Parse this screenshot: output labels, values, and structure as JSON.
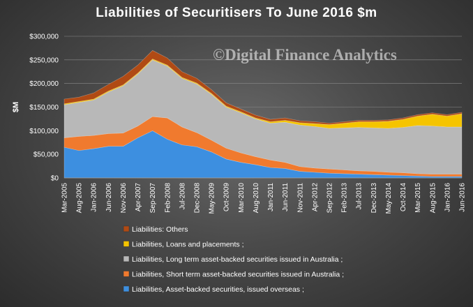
{
  "watermark": "©Digital Finance Analytics",
  "colors": {
    "overseas": "#3d8fe0",
    "short_term": "#f07a2e",
    "long_term": "#b8b8b8",
    "loans": "#f5c400",
    "others": "#b04a14"
  },
  "chart_data": {
    "type": "area",
    "stacked": true,
    "title": "Liabilities of Securitisers To June 2016 $m",
    "ylabel": "$M",
    "xlabel": "",
    "ylim": [
      0,
      300000
    ],
    "yticks": [
      "$0",
      "$50,000",
      "$100,000",
      "$150,000",
      "$200,000",
      "$250,000",
      "$300,000"
    ],
    "ytick_values": [
      0,
      50000,
      100000,
      150000,
      200000,
      250000,
      300000
    ],
    "grid": true,
    "legend_position": "bottom",
    "x": [
      "Mar-2005",
      "Aug-2005",
      "Jan-2006",
      "Jun-2006",
      "Nov-2006",
      "Apr-2007",
      "Sep-2007",
      "Feb-2008",
      "Jul-2008",
      "Dec-2008",
      "May-2009",
      "Oct-2009",
      "Mar-2010",
      "Aug-2010",
      "Jan-2011",
      "Jun-2011",
      "Nov-2011",
      "Apr-2012",
      "Sep-2012",
      "Feb-2013",
      "Jul-2013",
      "Dec-2013",
      "May-2014",
      "Oct-2014",
      "Mar-2015",
      "Aug-2015",
      "Jan-2016",
      "Jun-2016"
    ],
    "series": [
      {
        "name": "Liabilities, Asset-backed securities, issued overseas ;",
        "key": "overseas",
        "values": [
          65000,
          58000,
          62000,
          67000,
          67000,
          85000,
          100000,
          82000,
          70000,
          66000,
          55000,
          40000,
          33000,
          28000,
          22000,
          20000,
          14000,
          12000,
          10000,
          9000,
          8000,
          7000,
          6000,
          5000,
          4000,
          3000,
          3000,
          3000
        ]
      },
      {
        "name": "Liabilities, Short term asset-backed securities issued in Australia ;",
        "key": "short_term",
        "values": [
          20000,
          30000,
          28000,
          27000,
          28000,
          25000,
          30000,
          45000,
          38000,
          30000,
          25000,
          23000,
          20000,
          17000,
          16000,
          13000,
          10000,
          9000,
          9000,
          8000,
          7000,
          7000,
          6000,
          6000,
          5000,
          5000,
          5000,
          5000
        ]
      },
      {
        "name": "Liabilities, Long term asset-backed securities issued in Australia ;",
        "key": "long_term",
        "values": [
          70000,
          72000,
          75000,
          88000,
          100000,
          110000,
          120000,
          110000,
          103000,
          103000,
          97000,
          87000,
          85000,
          80000,
          78000,
          85000,
          88000,
          88000,
          86000,
          89000,
          92000,
          92000,
          93000,
          96000,
          102000,
          102000,
          100000,
          100000
        ]
      },
      {
        "name": "Liabilities, Loans and placements ;",
        "key": "loans",
        "values": [
          2000,
          2000,
          2000,
          2000,
          2000,
          2000,
          2000,
          2000,
          2000,
          2000,
          2000,
          2000,
          2000,
          2000,
          3000,
          4000,
          5000,
          6000,
          8000,
          10000,
          12000,
          13000,
          15000,
          17000,
          20000,
          25000,
          23000,
          28000
        ]
      },
      {
        "name": "Liabilities: Others",
        "key": "others",
        "values": [
          10000,
          9000,
          13000,
          14000,
          18000,
          17000,
          18000,
          15000,
          12000,
          10000,
          8000,
          7000,
          6000,
          6000,
          5000,
          5000,
          4000,
          4000,
          3000,
          3000,
          3000,
          3000,
          3000,
          3000,
          3000,
          3000,
          3000,
          3000
        ]
      }
    ]
  },
  "legend_order": [
    "others",
    "loans",
    "long_term",
    "short_term",
    "overseas"
  ]
}
